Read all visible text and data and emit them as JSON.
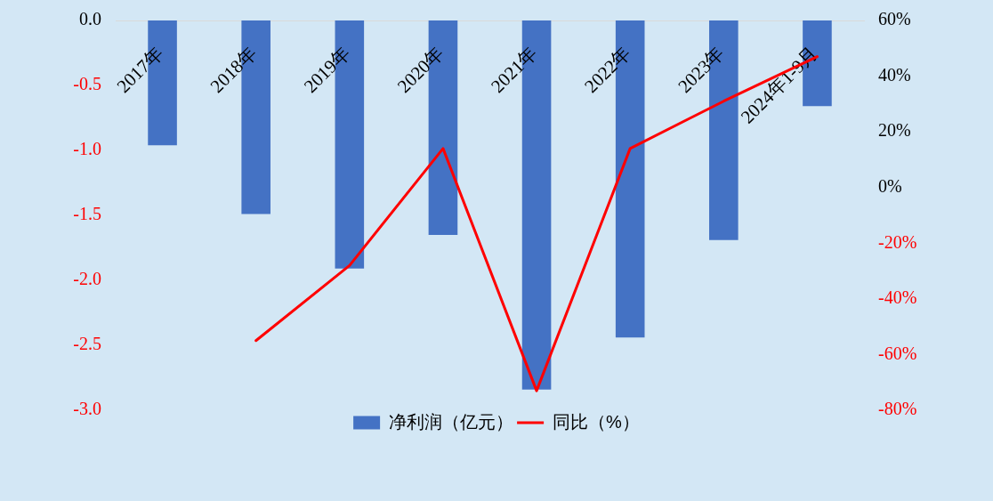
{
  "chart_data": {
    "type": "bar",
    "categories": [
      "2017年",
      "2018年",
      "2019年",
      "2020年",
      "2021年",
      "2022年",
      "2023年",
      "2024年1-9月"
    ],
    "series": [
      {
        "name": "净利润（亿元）",
        "color": "#4472c4",
        "values": [
          -0.96,
          -1.49,
          -1.91,
          -1.65,
          -2.84,
          -2.44,
          -1.69,
          -0.66
        ]
      },
      {
        "name": "同比（%）",
        "type": "line",
        "axis": "y2",
        "color": "#ff0000",
        "values": [
          null,
          -55,
          -28,
          14,
          -73,
          14,
          31,
          47
        ]
      }
    ],
    "ylim": [
      -3,
      0
    ],
    "yticks": [
      {
        "value": -3,
        "label": "-3.0"
      },
      {
        "value": -2.5,
        "label": "-2.5"
      },
      {
        "value": -2,
        "label": "-2.0"
      },
      {
        "value": -1.5,
        "label": "-1.5"
      },
      {
        "value": -1,
        "label": "-1.0"
      },
      {
        "value": -0.5,
        "label": "-0.5"
      },
      {
        "value": 0,
        "label": "0.0"
      }
    ],
    "y2lim": [
      -80,
      60
    ],
    "y2ticks": [
      {
        "value": -80,
        "label": "-80%"
      },
      {
        "value": -60,
        "label": "-60%"
      },
      {
        "value": -40,
        "label": "-40%"
      },
      {
        "value": -20,
        "label": "-20%"
      },
      {
        "value": 0,
        "label": "0%"
      },
      {
        "value": 20,
        "label": "20%"
      },
      {
        "value": 40,
        "label": "40%"
      },
      {
        "value": 60,
        "label": "60%"
      }
    ],
    "legend": "bottom"
  }
}
